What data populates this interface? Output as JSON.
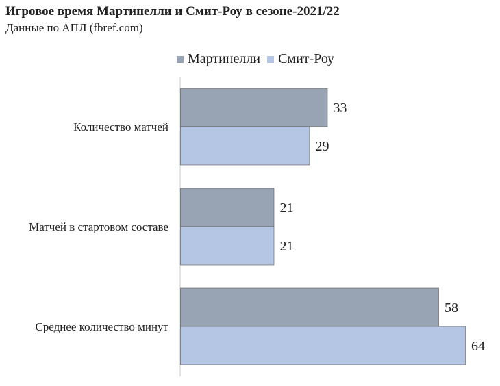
{
  "chart_data": {
    "type": "bar",
    "orientation": "horizontal",
    "title": "Игровое время Мартинелли и Смит-Роу в сезоне-2021/22",
    "subtitle": "Данные по АПЛ (fbref.com)",
    "categories": [
      "Количество матчей",
      "Матчей в стартовом составе",
      "Среднее количество минут"
    ],
    "series": [
      {
        "name": "Мартинелли",
        "values": [
          33,
          21,
          58
        ],
        "color": "#98a3b4"
      },
      {
        "name": "Смит-Роу",
        "values": [
          29,
          21,
          64
        ],
        "color": "#b4c6e4"
      }
    ],
    "xlim": [
      0,
      66
    ],
    "legend": "top",
    "grid": false,
    "data_labels": true
  }
}
